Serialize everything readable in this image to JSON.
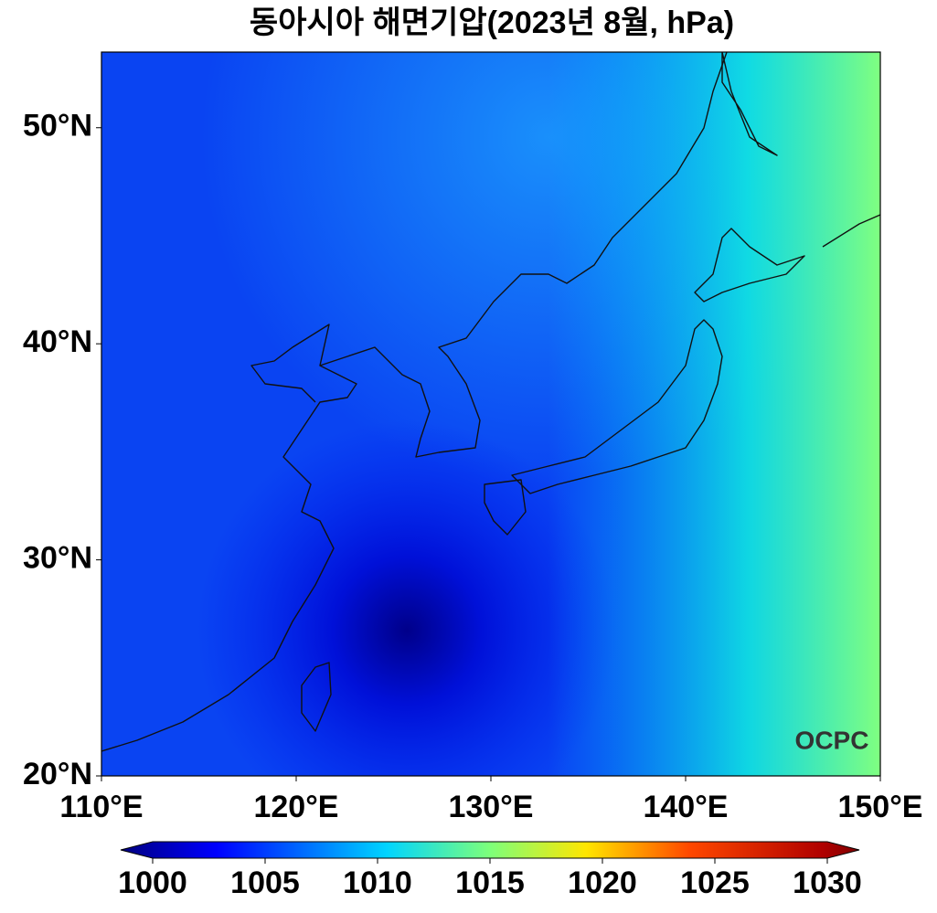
{
  "map": {
    "title": "동아시아 해면기압(2023년 8월, hPa)",
    "xlim": [
      110,
      150
    ],
    "ylim": [
      20,
      53.5
    ],
    "xticks": [
      {
        "value": 110,
        "label": "110°E"
      },
      {
        "value": 120,
        "label": "120°E"
      },
      {
        "value": 130,
        "label": "130°E"
      },
      {
        "value": 140,
        "label": "140°E"
      },
      {
        "value": 150,
        "label": "150°E"
      }
    ],
    "yticks": [
      {
        "value": 20,
        "label": "20°N"
      },
      {
        "value": 30,
        "label": "30°N"
      },
      {
        "value": 40,
        "label": "40°N"
      },
      {
        "value": 50,
        "label": "50°N"
      }
    ],
    "colorbar": {
      "lim": [
        1000,
        1030
      ],
      "ticks": [
        1000,
        1005,
        1010,
        1015,
        1020,
        1025,
        1030
      ]
    },
    "logo": "OCPC"
  }
}
